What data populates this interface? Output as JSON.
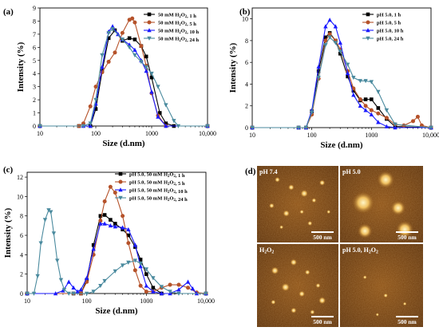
{
  "chart_data": [
    {
      "type": "line",
      "panel_label": "(a)",
      "xlabel": "Size (d.nm)",
      "ylabel": "Intensity (%)",
      "xscale": "log",
      "xlim": [
        10,
        10000
      ],
      "ylim": [
        0,
        9
      ],
      "xticks": [
        "10",
        "100",
        "1000",
        "10,000"
      ],
      "yticks": [
        "0",
        "1",
        "2",
        "3",
        "4",
        "5",
        "6",
        "7",
        "8",
        "9"
      ],
      "legend_position": "top-right",
      "series": [
        {
          "name": "50 mM H2O2, 1 h",
          "color": "#000000",
          "marker": "square",
          "x": [
            10,
            50,
            80,
            100,
            130,
            170,
            220,
            300,
            400,
            500,
            650,
            800,
            1000,
            1400,
            1800,
            2500,
            10000
          ],
          "y": [
            0,
            0,
            0,
            1.3,
            4.2,
            6.7,
            7.3,
            6.5,
            6.7,
            6.6,
            6.1,
            5.3,
            3.7,
            1.0,
            0.2,
            0,
            0
          ]
        },
        {
          "name": "50 mM H2O2, 5 h",
          "color": "#b5522a",
          "marker": "circle",
          "x": [
            10,
            50,
            60,
            80,
            100,
            130,
            170,
            220,
            300,
            400,
            450,
            500,
            650,
            800,
            1000,
            1300,
            1800,
            10000
          ],
          "y": [
            0,
            0,
            0.2,
            1.5,
            3.0,
            4.1,
            4.9,
            5.6,
            7.1,
            8.1,
            8.2,
            7.9,
            6.1,
            4.6,
            2.5,
            0.8,
            0,
            0
          ]
        },
        {
          "name": "50 mM H2O2, 10 h",
          "color": "#1a1aff",
          "marker": "triangle-up",
          "x": [
            10,
            60,
            80,
            100,
            130,
            170,
            200,
            250,
            300,
            400,
            500,
            650,
            800,
            1000,
            1300,
            1800,
            10000
          ],
          "y": [
            0,
            0,
            0,
            1.7,
            4.5,
            7.2,
            7.6,
            7.0,
            6.6,
            6.2,
            5.8,
            5.0,
            4.2,
            2.6,
            0.7,
            0,
            0
          ]
        },
        {
          "name": "50 mM H2O2, 24 h",
          "color": "#4a8a9e",
          "marker": "triangle-down",
          "x": [
            10,
            60,
            80,
            100,
            130,
            170,
            200,
            300,
            400,
            500,
            650,
            800,
            1000,
            1300,
            1800,
            2500,
            3000,
            10000
          ],
          "y": [
            0,
            0,
            0.2,
            2.0,
            5.4,
            7.1,
            7.4,
            6.6,
            6.0,
            5.4,
            4.9,
            4.5,
            4.0,
            3.0,
            1.6,
            0.4,
            0,
            0
          ]
        }
      ]
    },
    {
      "type": "line",
      "panel_label": "(b)",
      "xlabel": "Size (d.nm)",
      "ylabel": "Intensity (%)",
      "xscale": "log",
      "xlim": [
        10,
        10000
      ],
      "ylim": [
        0,
        11
      ],
      "xticks": [
        "10",
        "100",
        "1000",
        "10,000"
      ],
      "yticks": [
        "0",
        "2",
        "4",
        "6",
        "8",
        "10"
      ],
      "legend_position": "top-right",
      "series": [
        {
          "name": "pH 5.0, 1 h",
          "color": "#000000",
          "marker": "square",
          "x": [
            10,
            60,
            80,
            100,
            130,
            170,
            200,
            250,
            300,
            400,
            500,
            650,
            800,
            1000,
            1300,
            1800,
            2500,
            10000
          ],
          "y": [
            0,
            0,
            0,
            1.5,
            5.2,
            8.3,
            8.7,
            8.0,
            6.8,
            4.7,
            3.4,
            2.5,
            2.6,
            2.6,
            1.8,
            0.8,
            0.1,
            0
          ]
        },
        {
          "name": "pH 5.0, 5 h",
          "color": "#b5522a",
          "marker": "circle",
          "x": [
            10,
            60,
            80,
            100,
            130,
            170,
            200,
            250,
            300,
            400,
            500,
            650,
            800,
            1000,
            1300,
            1800,
            2500,
            3500,
            5000,
            6000,
            7000,
            10000
          ],
          "y": [
            0,
            0,
            0,
            1.2,
            4.5,
            8.0,
            8.6,
            8.0,
            7.2,
            5.2,
            3.6,
            2.6,
            2.0,
            1.6,
            1.3,
            0.9,
            0.3,
            0.2,
            0.6,
            1.0,
            0.2,
            0
          ]
        },
        {
          "name": "pH 5.0, 10 h",
          "color": "#1a1aff",
          "marker": "triangle-up",
          "x": [
            10,
            60,
            80,
            100,
            130,
            170,
            200,
            250,
            300,
            400,
            500,
            650,
            800,
            1000,
            1300,
            1800,
            2500,
            10000
          ],
          "y": [
            0,
            0,
            0,
            1.6,
            5.6,
            9.3,
            9.9,
            9.3,
            7.8,
            5.0,
            3.0,
            2.0,
            1.6,
            1.2,
            0.5,
            0.1,
            0,
            0
          ]
        },
        {
          "name": "pH 5.0, 24 h",
          "color": "#4a8a9e",
          "marker": "triangle-down",
          "x": [
            10,
            60,
            80,
            100,
            130,
            170,
            200,
            250,
            300,
            400,
            500,
            650,
            800,
            1000,
            1300,
            1800,
            2500,
            10000
          ],
          "y": [
            0,
            0,
            0,
            1.4,
            4.6,
            7.6,
            8.3,
            7.8,
            7.0,
            5.8,
            4.6,
            4.3,
            4.3,
            4.2,
            3.3,
            1.6,
            0.3,
            0
          ]
        }
      ]
    },
    {
      "type": "line",
      "panel_label": "(c)",
      "xlabel": "Size (d.nm)",
      "ylabel": "Intensity (%)",
      "xscale": "log",
      "xlim": [
        10,
        10000
      ],
      "ylim": [
        0,
        12.5
      ],
      "xticks": [
        "10",
        "100",
        "1000",
        "10,000"
      ],
      "yticks": [
        "0",
        "2",
        "4",
        "6",
        "8",
        "10",
        "12"
      ],
      "legend_position": "top-right",
      "series": [
        {
          "name": "pH 5.0, 50 mM H2O2, 1 h",
          "color": "#000000",
          "marker": "square",
          "x": [
            10,
            60,
            80,
            100,
            130,
            170,
            200,
            250,
            300,
            400,
            500,
            650,
            800,
            1000,
            1300,
            1800,
            10000
          ],
          "y": [
            0,
            0,
            0,
            1.4,
            5.0,
            8.0,
            8.1,
            7.6,
            7.2,
            6.6,
            6.0,
            4.8,
            3.5,
            2.0,
            0.6,
            0,
            0
          ]
        },
        {
          "name": "pH 5.0, 50 mM H2O2, 5 h",
          "color": "#b5522a",
          "marker": "circle",
          "x": [
            10,
            60,
            80,
            100,
            130,
            170,
            200,
            250,
            300,
            400,
            500,
            650,
            800,
            1000,
            1300,
            1800,
            2500,
            3500,
            5000,
            7000,
            10000
          ],
          "y": [
            0,
            0,
            0,
            1.2,
            4.0,
            7.5,
            9.5,
            11.0,
            10.4,
            8.0,
            5.2,
            2.4,
            0.8,
            0.2,
            0.2,
            0.6,
            0.9,
            0.9,
            0.6,
            0.1,
            0
          ]
        },
        {
          "name": "pH 5.0, 50 mM H2O2, 10 h",
          "color": "#1a1aff",
          "marker": "triangle-up",
          "x": [
            10,
            30,
            40,
            50,
            60,
            70,
            80,
            100,
            130,
            170,
            200,
            250,
            300,
            400,
            500,
            650,
            800,
            1000,
            1300,
            1800,
            2500,
            3500,
            5000,
            6000,
            7000,
            10000
          ],
          "y": [
            0,
            0,
            0.3,
            1.2,
            0.6,
            0.2,
            0.4,
            1.6,
            4.6,
            7.2,
            7.2,
            7.0,
            6.9,
            6.8,
            6.6,
            5.0,
            2.8,
            0.8,
            0.2,
            0,
            0,
            0.4,
            1.2,
            0.5,
            0,
            0
          ]
        },
        {
          "name": "pH 5.0, 50 mM H2O2, 24 h",
          "color": "#4a8a9e",
          "marker": "triangle-down",
          "x": [
            10,
            13,
            15,
            17,
            20,
            23,
            25,
            28,
            32,
            37,
            42,
            50,
            60,
            100,
            130,
            170,
            200,
            300,
            400,
            500,
            650,
            800,
            1000,
            1300,
            1800,
            2500,
            3500,
            10000
          ],
          "y": [
            0,
            0,
            1.8,
            5.2,
            7.6,
            8.6,
            8.4,
            6.2,
            3.4,
            1.4,
            0.4,
            0,
            0,
            0,
            0.2,
            0.8,
            1.3,
            2.3,
            2.9,
            3.2,
            3.4,
            3.1,
            2.5,
            1.6,
            0.7,
            0.2,
            0,
            0
          ]
        }
      ]
    }
  ],
  "panel_d": {
    "label": "(d)",
    "images": [
      {
        "caption": "pH 7.4",
        "scale": "500 nm"
      },
      {
        "caption": "pH 5.0",
        "scale": "500 nm"
      },
      {
        "caption": "H2O2",
        "scale": "500 nm"
      },
      {
        "caption": "pH 5.0, H2O2",
        "scale": "500 nm"
      }
    ]
  }
}
